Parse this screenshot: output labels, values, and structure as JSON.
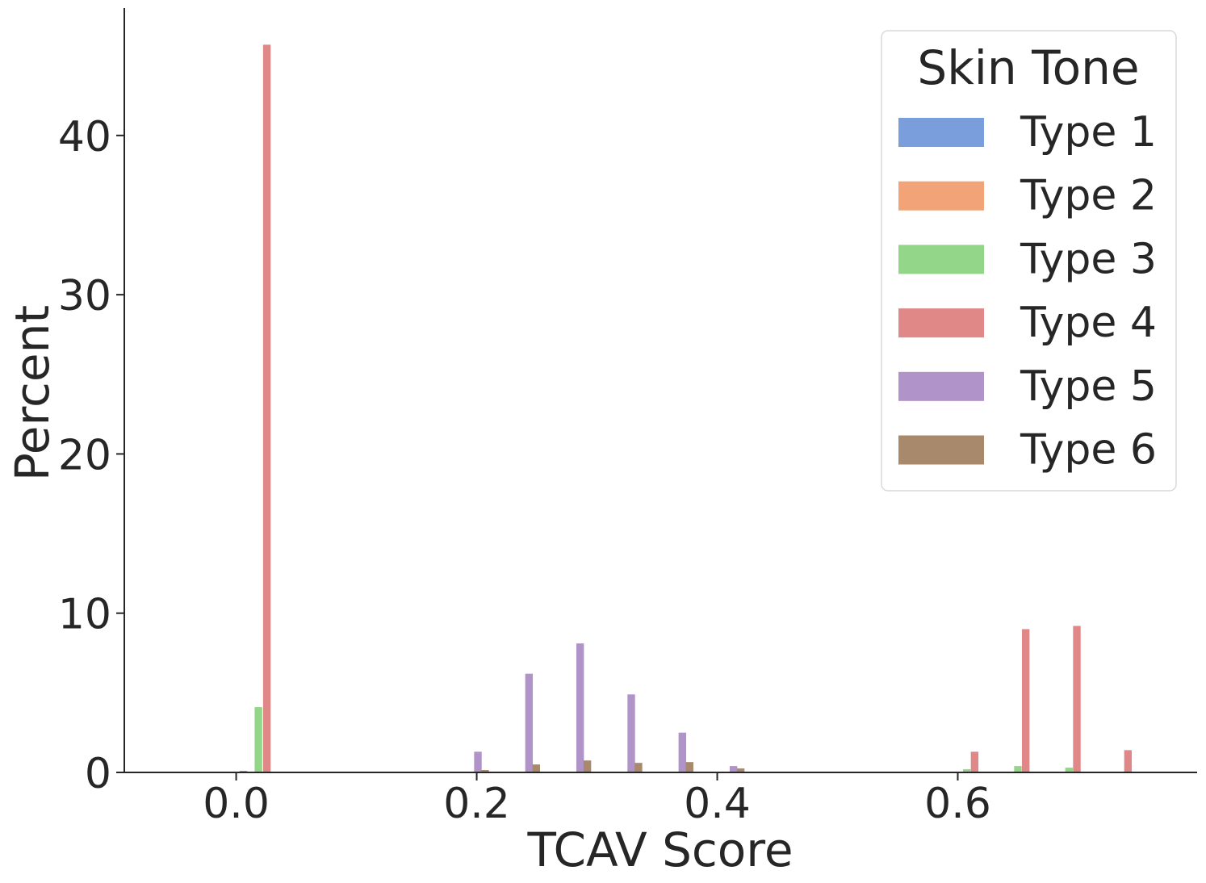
{
  "chart_data": {
    "type": "bar",
    "title": "",
    "xlabel": "TCAV Score",
    "ylabel": "Percent",
    "xlim": [
      -0.093,
      0.799
    ],
    "ylim": [
      0,
      48
    ],
    "xticks": [
      0.0,
      0.2,
      0.4,
      0.6
    ],
    "xtick_labels": [
      "0.0",
      "0.2",
      "0.4",
      "0.6"
    ],
    "yticks": [
      0,
      10,
      20,
      30,
      40
    ],
    "ytick_labels": [
      "0",
      "10",
      "20",
      "30",
      "40"
    ],
    "grid": false,
    "legend": {
      "title": "Skin Tone",
      "position": "top-right"
    },
    "bin_width": 0.0063,
    "series": [
      {
        "name": "Type 1",
        "color": "#7a9ddc",
        "bars": [
          {
            "x": 0.006,
            "value": 0.1
          }
        ]
      },
      {
        "name": "Type 2",
        "color": "#f2a478",
        "bars": []
      },
      {
        "name": "Type 3",
        "color": "#93d68a",
        "bars": [
          {
            "x": 0.0185,
            "value": 4.1
          },
          {
            "x": 0.6075,
            "value": 0.2
          },
          {
            "x": 0.65,
            "value": 0.4
          },
          {
            "x": 0.6925,
            "value": 0.3
          }
        ]
      },
      {
        "name": "Type 4",
        "color": "#e08888",
        "bars": [
          {
            "x": 0.0255,
            "value": 45.7
          },
          {
            "x": 0.614,
            "value": 1.3
          },
          {
            "x": 0.6565,
            "value": 9.0
          },
          {
            "x": 0.699,
            "value": 9.2
          },
          {
            "x": 0.7415,
            "value": 1.4
          }
        ]
      },
      {
        "name": "Type 5",
        "color": "#b093c8",
        "bars": [
          {
            "x": 0.201,
            "value": 1.3
          },
          {
            "x": 0.2435,
            "value": 6.2
          },
          {
            "x": 0.286,
            "value": 8.1
          },
          {
            "x": 0.3285,
            "value": 4.9
          },
          {
            "x": 0.371,
            "value": 2.5
          },
          {
            "x": 0.4135,
            "value": 0.4
          }
        ]
      },
      {
        "name": "Type 6",
        "color": "#a8896c",
        "bars": [
          {
            "x": 0.207,
            "value": 0.15
          },
          {
            "x": 0.2495,
            "value": 0.5
          },
          {
            "x": 0.292,
            "value": 0.75
          },
          {
            "x": 0.3345,
            "value": 0.6
          },
          {
            "x": 0.377,
            "value": 0.65
          },
          {
            "x": 0.4195,
            "value": 0.25
          }
        ]
      }
    ]
  }
}
